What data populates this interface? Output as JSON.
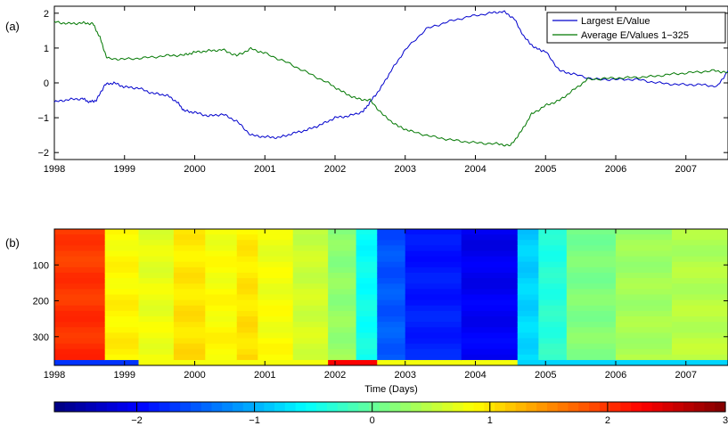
{
  "panel_a_label": "(a)",
  "panel_b_label": "(b)",
  "chart_data": [
    {
      "type": "line",
      "x_ticks": [
        "1998",
        "1999",
        "2000",
        "2001",
        "2002",
        "2003",
        "2004",
        "2005",
        "2006",
        "2007"
      ],
      "y_ticks": [
        "-2",
        "-1",
        "0",
        "1",
        "2"
      ],
      "xlim": [
        1998,
        2007.6
      ],
      "ylim": [
        -2.2,
        2.2
      ],
      "legend_position": "top-right",
      "series": [
        {
          "name": "Largest E/Value",
          "color": "#0000cc",
          "points": [
            [
              1998,
              -0.55
            ],
            [
              1998.2,
              -0.48
            ],
            [
              1998.4,
              -0.45
            ],
            [
              1998.5,
              -0.55
            ],
            [
              1998.6,
              -0.5
            ],
            [
              1998.72,
              -0.05
            ],
            [
              1998.85,
              0.0
            ],
            [
              1999,
              -0.12
            ],
            [
              1999.2,
              -0.15
            ],
            [
              1999.4,
              -0.3
            ],
            [
              1999.6,
              -0.35
            ],
            [
              1999.75,
              -0.55
            ],
            [
              1999.85,
              -0.8
            ],
            [
              2000,
              -0.85
            ],
            [
              2000.2,
              -0.95
            ],
            [
              2000.4,
              -0.9
            ],
            [
              2000.6,
              -1.1
            ],
            [
              2000.8,
              -1.5
            ],
            [
              2001,
              -1.55
            ],
            [
              2001.2,
              -1.57
            ],
            [
              2001.4,
              -1.45
            ],
            [
              2001.6,
              -1.35
            ],
            [
              2001.8,
              -1.2
            ],
            [
              2002,
              -1.0
            ],
            [
              2002.2,
              -0.95
            ],
            [
              2002.4,
              -0.82
            ],
            [
              2002.5,
              -0.55
            ],
            [
              2002.65,
              -0.15
            ],
            [
              2002.8,
              0.35
            ],
            [
              2003,
              0.95
            ],
            [
              2003.3,
              1.55
            ],
            [
              2003.6,
              1.75
            ],
            [
              2003.9,
              1.9
            ],
            [
              2004.2,
              2.0
            ],
            [
              2004.4,
              2.05
            ],
            [
              2004.55,
              1.85
            ],
            [
              2004.7,
              1.3
            ],
            [
              2004.85,
              1.0
            ],
            [
              2005,
              0.9
            ],
            [
              2005.2,
              0.35
            ],
            [
              2005.4,
              0.25
            ],
            [
              2005.7,
              0.1
            ],
            [
              2006,
              0.1
            ],
            [
              2006.3,
              0.1
            ],
            [
              2006.6,
              0.0
            ],
            [
              2006.9,
              -0.05
            ],
            [
              2007.2,
              -0.05
            ],
            [
              2007.45,
              -0.1
            ],
            [
              2007.6,
              0.35
            ]
          ]
        },
        {
          "name": "Average E/Values 1−325",
          "color": "#007700",
          "points": [
            [
              1998,
              1.75
            ],
            [
              1998.2,
              1.7
            ],
            [
              1998.4,
              1.72
            ],
            [
              1998.55,
              1.7
            ],
            [
              1998.65,
              1.3
            ],
            [
              1998.75,
              0.7
            ],
            [
              1999,
              0.68
            ],
            [
              1999.3,
              0.72
            ],
            [
              1999.6,
              0.78
            ],
            [
              1999.85,
              0.8
            ],
            [
              2000,
              0.88
            ],
            [
              2000.2,
              0.92
            ],
            [
              2000.4,
              0.95
            ],
            [
              2000.6,
              0.78
            ],
            [
              2000.8,
              0.98
            ],
            [
              2001,
              0.85
            ],
            [
              2001.3,
              0.6
            ],
            [
              2001.6,
              0.3
            ],
            [
              2001.9,
              0.0
            ],
            [
              2002.1,
              -0.25
            ],
            [
              2002.3,
              -0.45
            ],
            [
              2002.5,
              -0.5
            ],
            [
              2002.7,
              -0.95
            ],
            [
              2002.9,
              -1.25
            ],
            [
              2003.1,
              -1.4
            ],
            [
              2003.4,
              -1.55
            ],
            [
              2003.7,
              -1.65
            ],
            [
              2004,
              -1.72
            ],
            [
              2004.3,
              -1.75
            ],
            [
              2004.5,
              -1.8
            ],
            [
              2004.65,
              -1.4
            ],
            [
              2004.8,
              -0.9
            ],
            [
              2005,
              -0.65
            ],
            [
              2005.2,
              -0.5
            ],
            [
              2005.4,
              -0.2
            ],
            [
              2005.6,
              0.1
            ],
            [
              2005.9,
              0.13
            ],
            [
              2006.2,
              0.15
            ],
            [
              2006.5,
              0.18
            ],
            [
              2006.8,
              0.25
            ],
            [
              2007.1,
              0.3
            ],
            [
              2007.4,
              0.35
            ],
            [
              2007.6,
              0.3
            ]
          ]
        }
      ]
    },
    {
      "type": "heatmap",
      "xlabel": "Time (Days)",
      "x_ticks": [
        "1998",
        "1999",
        "2000",
        "2001",
        "2002",
        "2003",
        "2004",
        "2005",
        "2006",
        "2007"
      ],
      "y_ticks": [
        "100",
        "200",
        "300"
      ],
      "xlim": [
        1998,
        2007.6
      ],
      "ylim": [
        0,
        380
      ],
      "colorbar_ticks": [
        "-2",
        "-1",
        "0",
        "1",
        "2",
        "3"
      ],
      "colorbar_range": [
        -2.7,
        3.0
      ],
      "columns": [
        {
          "x0": 1998.0,
          "x1": 1998.72,
          "v": 2.0
        },
        {
          "x0": 1998.72,
          "x1": 1999.2,
          "v": 0.9
        },
        {
          "x0": 1999.2,
          "x1": 1999.7,
          "v": 0.75
        },
        {
          "x0": 1999.7,
          "x1": 2000.15,
          "v": 1.0
        },
        {
          "x0": 2000.15,
          "x1": 2000.6,
          "v": 0.85
        },
        {
          "x0": 2000.6,
          "x1": 2000.9,
          "v": 1.0
        },
        {
          "x0": 2000.9,
          "x1": 2001.4,
          "v": 0.8
        },
        {
          "x0": 2001.4,
          "x1": 2001.9,
          "v": 0.6
        },
        {
          "x0": 2001.9,
          "x1": 2002.3,
          "v": 0.25
        },
        {
          "x0": 2002.3,
          "x1": 2002.6,
          "v": -0.5
        },
        {
          "x0": 2002.6,
          "x1": 2003.0,
          "v": -1.5
        },
        {
          "x0": 2003.0,
          "x1": 2003.8,
          "v": -1.85
        },
        {
          "x0": 2003.8,
          "x1": 2004.6,
          "v": -2.05
        },
        {
          "x0": 2004.6,
          "x1": 2004.9,
          "v": -0.8
        },
        {
          "x0": 2004.9,
          "x1": 2005.3,
          "v": -0.35
        },
        {
          "x0": 2005.3,
          "x1": 2006.0,
          "v": 0.15
        },
        {
          "x0": 2006.0,
          "x1": 2006.8,
          "v": 0.35
        },
        {
          "x0": 2006.8,
          "x1": 2007.6,
          "v": 0.45
        }
      ]
    }
  ]
}
